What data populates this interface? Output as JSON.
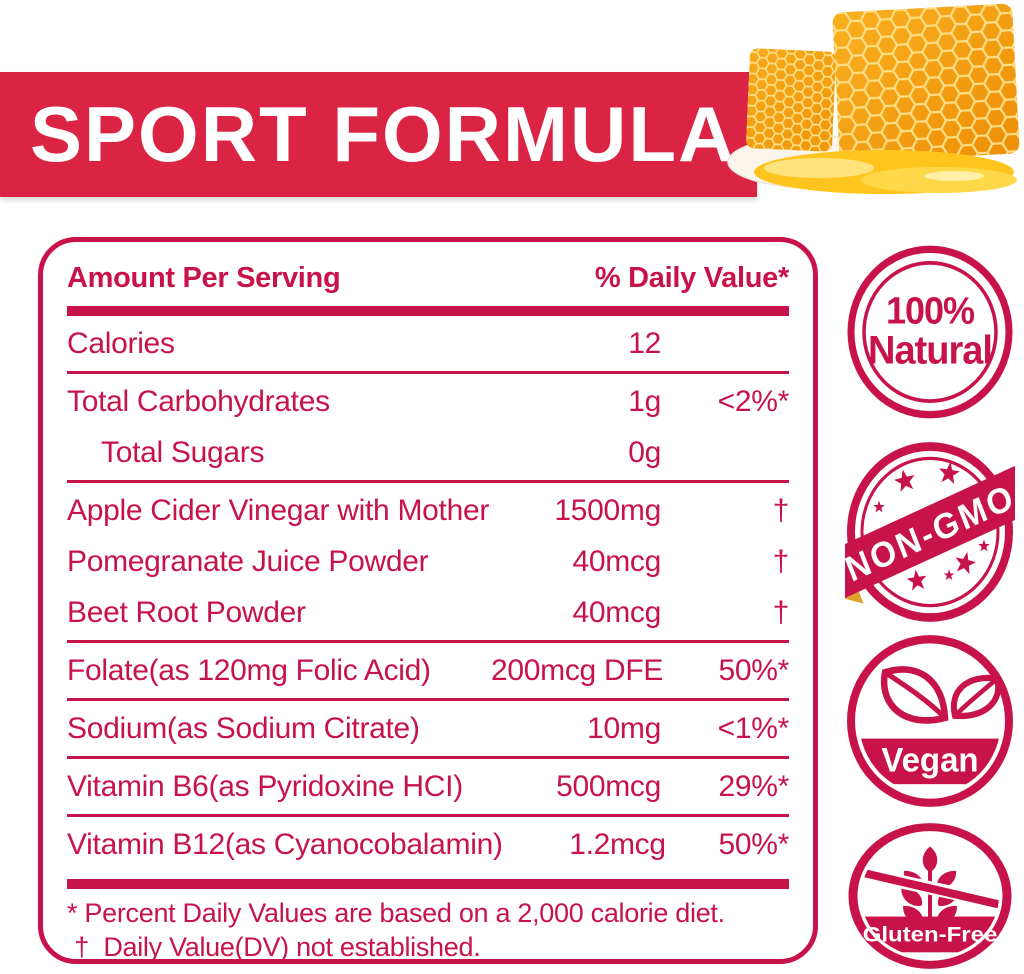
{
  "colors": {
    "brand_red": "#C8134A",
    "banner_red": "#DB2443",
    "honey_orange": "#F29A10",
    "honey_wall": "#FFDE85",
    "honey_pool": "#FFC51E"
  },
  "banner": {
    "title": "SPORT FORMULA"
  },
  "panel": {
    "header": {
      "amount_per_serving": "Amount Per Serving",
      "daily_value": "% Daily Value*"
    },
    "rows": [
      {
        "name": "Calories",
        "amount": "12",
        "dv": "",
        "indent": false,
        "divider_after": "thin"
      },
      {
        "name": "Total Carbohydrates",
        "amount": "1g",
        "dv": "<2%*",
        "indent": false,
        "divider_after": "none"
      },
      {
        "name": "Total Sugars",
        "amount": "0g",
        "dv": "",
        "indent": true,
        "divider_after": "thin"
      },
      {
        "name": "Apple Cider Vinegar with Mother",
        "amount": "1500mg",
        "dv": "†",
        "indent": false,
        "divider_after": "none"
      },
      {
        "name": "Pomegranate Juice Powder",
        "amount": "40mcg",
        "dv": "†",
        "indent": false,
        "divider_after": "none"
      },
      {
        "name": "Beet Root Powder",
        "amount": "40mcg",
        "dv": "†",
        "indent": false,
        "divider_after": "thin"
      },
      {
        "name": "Folate(as 120mg Folic Acid)",
        "amount": "200mcg DFE",
        "dv": "50%*",
        "indent": false,
        "divider_after": "thin"
      },
      {
        "name": "Sodium(as Sodium Citrate)",
        "amount": "10mg",
        "dv": "<1%*",
        "indent": false,
        "divider_after": "thin"
      },
      {
        "name": "Vitamin B6(as Pyridoxine HCI)",
        "amount": "500mcg",
        "dv": "29%*",
        "indent": false,
        "divider_after": "thin"
      },
      {
        "name": "Vitamin B12(as Cyanocobalamin)",
        "amount": "1.2mcg",
        "dv": "50%*",
        "indent": false,
        "divider_after": "thick"
      }
    ],
    "footnotes": [
      "* Percent Daily Values are based on a 2,000 calorie diet.",
      " †  Daily Value(DV) not established."
    ]
  },
  "badges": {
    "natural": {
      "line1": "100%",
      "line2": "Natural"
    },
    "non_gmo": {
      "label": "NON-GMO"
    },
    "vegan": {
      "label": "Vegan"
    },
    "gluten_free": {
      "label": "Gluten-Free"
    }
  }
}
